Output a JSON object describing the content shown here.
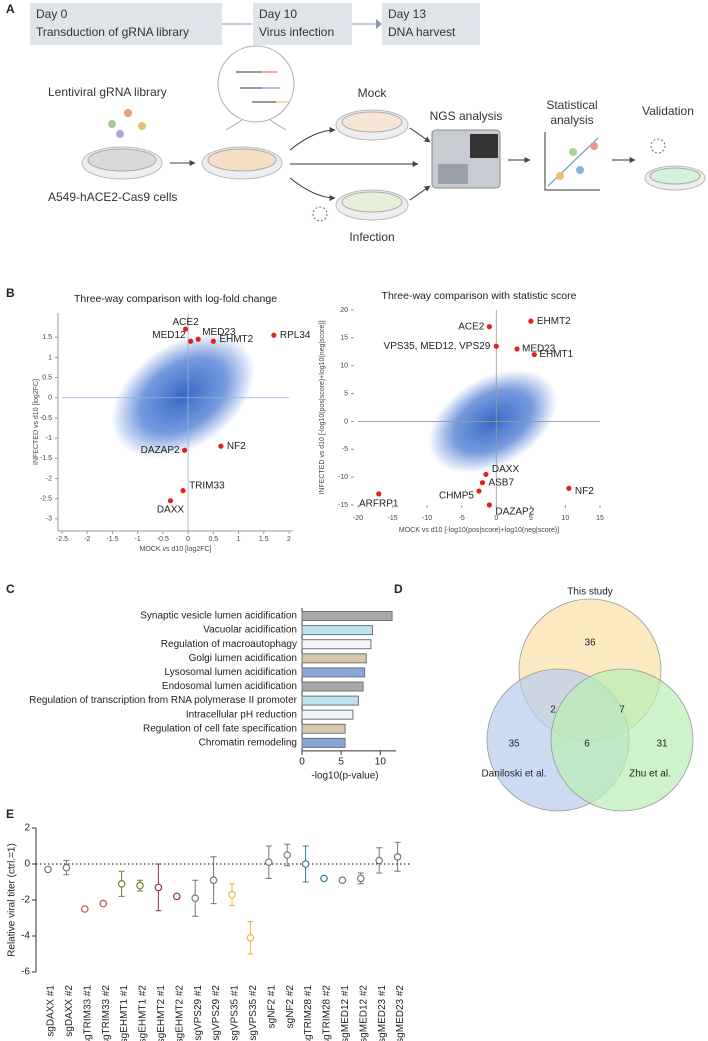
{
  "panel_labels": [
    "A",
    "B",
    "C",
    "D",
    "E"
  ],
  "diagram": {
    "timeline": [
      {
        "day": "Day 0",
        "step": "Transduction of gRNA library"
      },
      {
        "day": "Day 10",
        "step": "Virus infection"
      },
      {
        "day": "Day 13",
        "step": "DNA harvest"
      }
    ],
    "labels": {
      "library": "Lentiviral gRNA library",
      "cells": "A549-hACE2-Cas9 cells",
      "mock": "Mock",
      "infection": "Infection",
      "ngs": "NGS analysis",
      "stats": [
        "Statistical",
        "analysis"
      ],
      "validation": "Validation"
    }
  },
  "chart_data": [
    {
      "type": "scatter",
      "title": "Three-way comparison with log-fold change",
      "x_label": "MOCK vs d10 [log2FC]",
      "y_label": "INFECTED vs d10 [log2FC]",
      "labels": [
        "ACE2",
        "MED23",
        "MED12",
        "EHMT2",
        "RPL34",
        "NF2",
        "DAZAP2",
        "TRIM33",
        "DAXX"
      ],
      "x": [
        -0.05,
        0.2,
        0.05,
        0.5,
        1.7,
        0.65,
        -0.07,
        -0.1,
        -0.35
      ],
      "values": [
        1.7,
        1.45,
        1.4,
        1.4,
        1.55,
        -1.2,
        -1.3,
        -2.3,
        -2.55
      ],
      "color": "#e3211c",
      "cloud_color": "#3b6fd0",
      "crosshair_color": "#8fb3d9",
      "xlim": [
        -2.5,
        2
      ],
      "xticks": [
        -2.5,
        -2,
        -1.5,
        -1,
        -0.5,
        0,
        0.5,
        1,
        1.5,
        2
      ],
      "ylim": [
        -3.3,
        2.1
      ],
      "yticks": [
        -3,
        -2.5,
        -2,
        -1.5,
        -1,
        -0.5,
        0,
        0.5,
        1,
        1.5
      ]
    },
    {
      "type": "scatter",
      "title": "Three-way comparison with statistic score",
      "x_label": "MOCK vs d10 [-log10(pos|score)+log10(neg|score)]",
      "y_label": "INFECTED vs d10 [-log10(pos|score)+log10(neg|score)]",
      "labels": [
        "ACE2",
        "EHMT2",
        "VPS35, MED12, VPS29",
        "MED23",
        "EHMT1",
        "DAXX",
        "ASB7",
        "CHMP5",
        "DAZAP2",
        "ARFRP1",
        "NF2"
      ],
      "x": [
        -1,
        5,
        0,
        3,
        5.5,
        -1.5,
        -2,
        -2.5,
        -1,
        -17,
        10.5
      ],
      "values": [
        17,
        18,
        13.5,
        13,
        12,
        -9.5,
        -11,
        -12.5,
        -15,
        -13,
        -12
      ],
      "color": "#e3211c",
      "cloud_color": "#3b6fd0",
      "crosshair_color": "#999999",
      "xlim": [
        -20,
        15
      ],
      "xticks": [
        -20,
        -15,
        -10,
        -5,
        0,
        5,
        10,
        15
      ],
      "ylim": [
        -15,
        20
      ],
      "yticks": [
        -15,
        -10,
        -5,
        0,
        5,
        10,
        15,
        20
      ]
    },
    {
      "type": "barh",
      "x_label": "-log10(p-value)",
      "categories": [
        "Synaptic vesicle lumen acidification",
        "Vacuolar acidification",
        "Regulation of macroautophagy",
        "Golgi lumen acidification",
        "Lysosomal lumen acidification",
        "Endosomal lumen acidification",
        "Regulation of transcription from RNA polymerase II promoter",
        "Intracellular pH reduction",
        "Regulation of cell fate specification",
        "Chromatin remodeling"
      ],
      "values": [
        11.5,
        9,
        8.8,
        8.2,
        8,
        7.8,
        7.2,
        6.5,
        5.5,
        5.5
      ],
      "colors": [
        "#a9a9a9",
        "#bfe3ee",
        "#f4f4f4",
        "#d8c8a8",
        "#8aa6d8",
        "#a9a9a9",
        "#bfe3ee",
        "#f4f4f4",
        "#d8c8a8",
        "#8aa6d8"
      ],
      "xlim": [
        0,
        12
      ],
      "xticks": [
        0,
        5,
        10
      ]
    },
    {
      "type": "venn",
      "sets": [
        {
          "name": "This study",
          "color": "#f9dfa8"
        },
        {
          "name": "Daniloski et al.",
          "color": "#b8cdee"
        },
        {
          "name": "Zhu et al.",
          "color": "#b9eeb3"
        }
      ],
      "regions": [
        {
          "sets": [
            0
          ],
          "value": 36
        },
        {
          "sets": [
            1
          ],
          "value": 35
        },
        {
          "sets": [
            2
          ],
          "value": 31
        },
        {
          "sets": [
            0,
            1
          ],
          "value": 2
        },
        {
          "sets": [
            0,
            2
          ],
          "value": 7
        },
        {
          "sets": [
            0,
            1,
            2
          ],
          "value": 6
        }
      ]
    },
    {
      "type": "errorbar",
      "y_label": "Relative viral titer (ctrl.=1)",
      "categories": [
        "sgDAXX #1",
        "sgDAXX #2",
        "sgTRIM33 #1",
        "sgTRIM33 #2",
        "sgEHMT1 #1",
        "sgEHMT1 #2",
        "sgEHMT2 #1",
        "sgEHMT2 #2",
        "sgVPS29 #1",
        "sgVPS29 #2",
        "sgVPS35 #1",
        "sgVPS35 #2",
        "sgNF2 #1",
        "sgNF2 #2",
        "sgTRIM28 #1",
        "sgTRIM28 #2",
        "sgMED12 #1",
        "sgMED12 #2",
        "sgMED23 #1",
        "sgMED23 #2"
      ],
      "values": [
        -0.3,
        -0.2,
        -2.5,
        -2.2,
        -1.1,
        -1.2,
        -1.3,
        -1.8,
        -1.9,
        -0.9,
        -1.7,
        -4.1,
        0.1,
        0.5,
        0,
        -0.8,
        -0.9,
        -0.8,
        0.2,
        0.4
      ],
      "errors": [
        0.1,
        0.4,
        0.05,
        0.1,
        0.7,
        0.3,
        1.3,
        0.1,
        1.0,
        1.3,
        0.6,
        0.9,
        0.9,
        0.6,
        1.0,
        0.05,
        0.1,
        0.3,
        0.7,
        0.8
      ],
      "colors": [
        "#777777",
        "#777777",
        "#c0504d",
        "#c0504d",
        "#7a7a3a",
        "#7a7a3a",
        "#8b3a3a",
        "#8b3a3a",
        "#777777",
        "#777777",
        "#e8b84a",
        "#e8b84a",
        "#777777",
        "#777777",
        "#2f7f8f",
        "#2f7f8f",
        "#777777",
        "#777777",
        "#777777",
        "#777777"
      ],
      "reference_line": 0,
      "ylim": [
        -6,
        2
      ],
      "yticks": [
        -6,
        -4,
        -2,
        0,
        2
      ]
    }
  ]
}
